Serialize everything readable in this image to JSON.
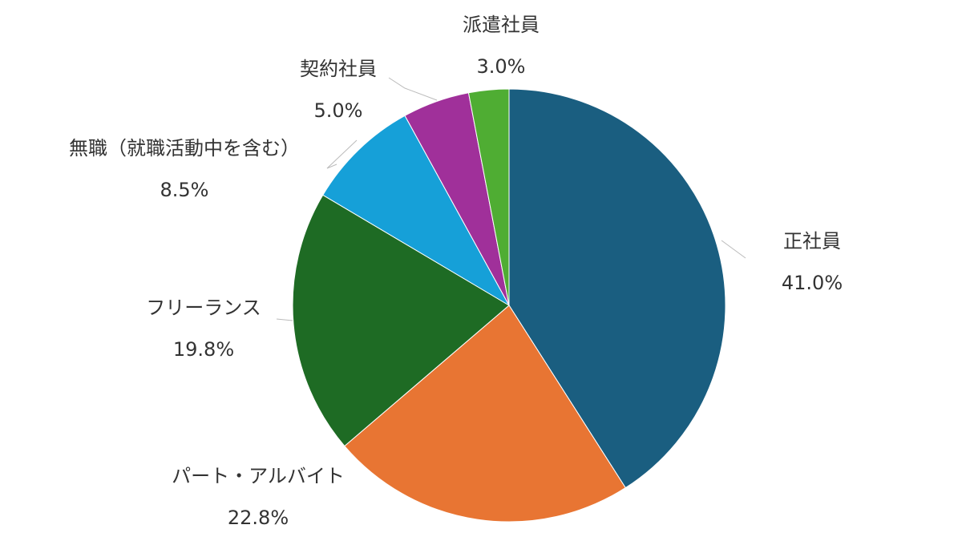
{
  "chart_data": {
    "type": "pie",
    "categories": [
      "正社員",
      "パート・アルバイト",
      "フリーランス",
      "無職（就職活動中を含む）",
      "契約社員",
      "派遣社員"
    ],
    "values": [
      41.0,
      22.8,
      19.8,
      8.5,
      5.0,
      3.0
    ],
    "value_labels": [
      "41.0%",
      "22.8%",
      "19.8%",
      "8.5%",
      "5.0%",
      "3.0%"
    ],
    "colors": [
      "#1a5e80",
      "#e87533",
      "#1e6b24",
      "#16a0d8",
      "#a0309a",
      "#4fad33"
    ]
  }
}
